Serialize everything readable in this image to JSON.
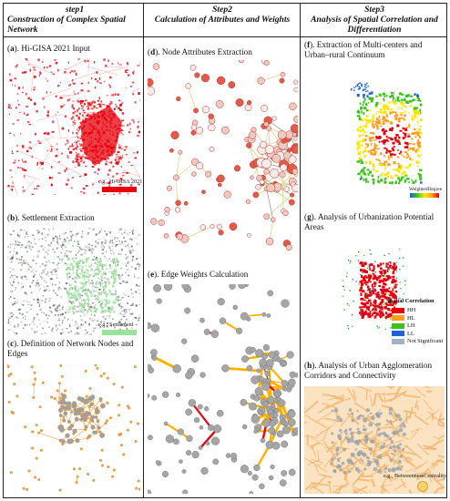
{
  "columns": [
    {
      "step": "step1",
      "title": "Construction of Complex Spatial Network"
    },
    {
      "step": "Step2",
      "title": "Calculation of Attributes and Weights"
    },
    {
      "step": "Step3",
      "title": "Analysis of Spatial Correlation and Differentiation"
    }
  ],
  "panels": {
    "a": {
      "letter": "a",
      "title": "Hi-GISA 2021 Input",
      "legend": "e.g., Hi-GISA 2021"
    },
    "b": {
      "letter": "b",
      "title": "Settlement Extraction",
      "legend": "e.g., Settlement"
    },
    "c": {
      "letter": "c",
      "title": "Definition of Network Nodes and Edges"
    },
    "d": {
      "letter": "d",
      "title": "Node Attributes Extraction"
    },
    "e": {
      "letter": "e",
      "title": "Edge Weights Calculation"
    },
    "f": {
      "letter": "f",
      "title": "Extraction of Multi-centers and Urban–rural Continuum",
      "legend": "WeightedDegree"
    },
    "g": {
      "letter": "g",
      "title": "Analysis of Urbanization Potential Areas",
      "legend_title": "Spatial Correlation",
      "legend_items": [
        {
          "label": "HH",
          "color": "#e8000b"
        },
        {
          "label": "HL",
          "color": "#ff9d1c"
        },
        {
          "label": "LH",
          "color": "#3cc31b"
        },
        {
          "label": "LL",
          "color": "#1f62d6"
        },
        {
          "label": "Not Significant",
          "color": "#9fb3c8"
        }
      ]
    },
    "h": {
      "letter": "h",
      "title": "Analysis of Urban Agglomeration Corridors and Connectivity",
      "legend": "e.g., BetweennessCentrality"
    }
  },
  "colors": {
    "hi_gisa": "#e8000b",
    "settlement": "#9be39b",
    "node": "#e35a4a",
    "edge_weight": "#ffb000",
    "network": "#f2a64d"
  }
}
